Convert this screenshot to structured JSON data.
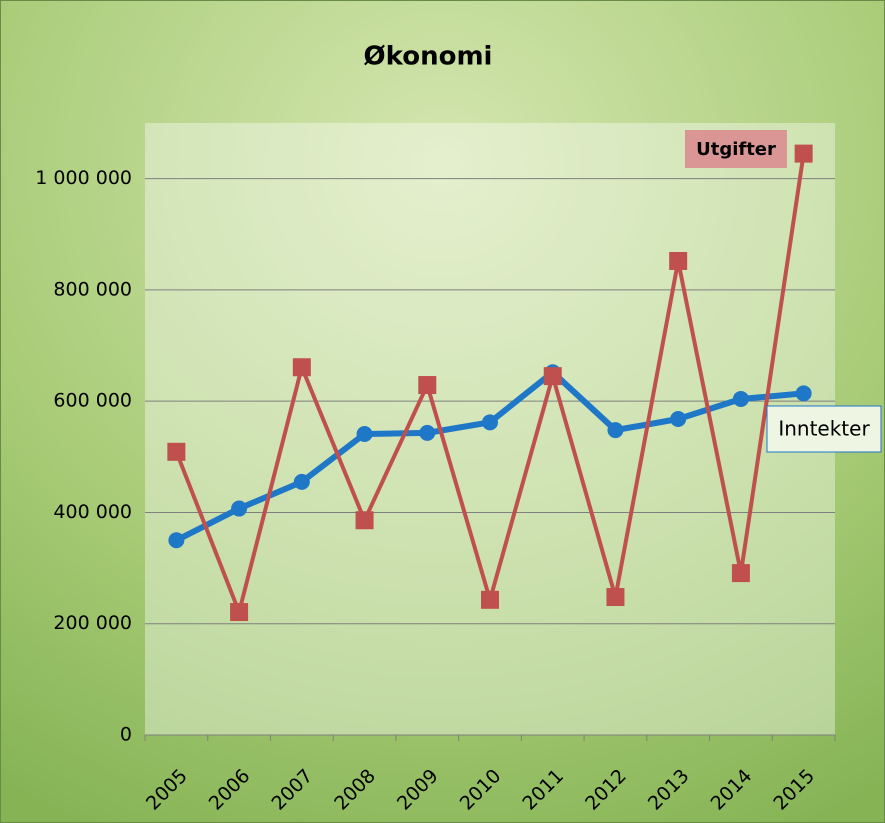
{
  "chart_data": {
    "type": "line",
    "title": "Økonomi",
    "categories": [
      "2005",
      "2006",
      "2007",
      "2008",
      "2009",
      "2010",
      "2011",
      "2012",
      "2013",
      "2014",
      "2015"
    ],
    "series": [
      {
        "name": "Inntekter",
        "color": "#1f77c8",
        "values": [
          350000,
          407000,
          455000,
          541000,
          543000,
          562000,
          652000,
          548000,
          568000,
          604000,
          614000
        ]
      },
      {
        "name": "Utgifter",
        "color": "#c0504d",
        "values": [
          509000,
          221000,
          661000,
          386000,
          629000,
          243000,
          645000,
          248000,
          852000,
          291000,
          1045000
        ]
      }
    ],
    "ylim": [
      0,
      1100000
    ],
    "yticks": [
      0,
      {
        "value": 200000,
        "label": "200 000"
      },
      {
        "value": 400000,
        "label": "400 000"
      },
      {
        "value": 600000,
        "label": "600 000"
      },
      {
        "value": 800000,
        "label": "800 000"
      },
      {
        "value": 1000000,
        "label": "1 000 000"
      }
    ],
    "grid": true
  }
}
